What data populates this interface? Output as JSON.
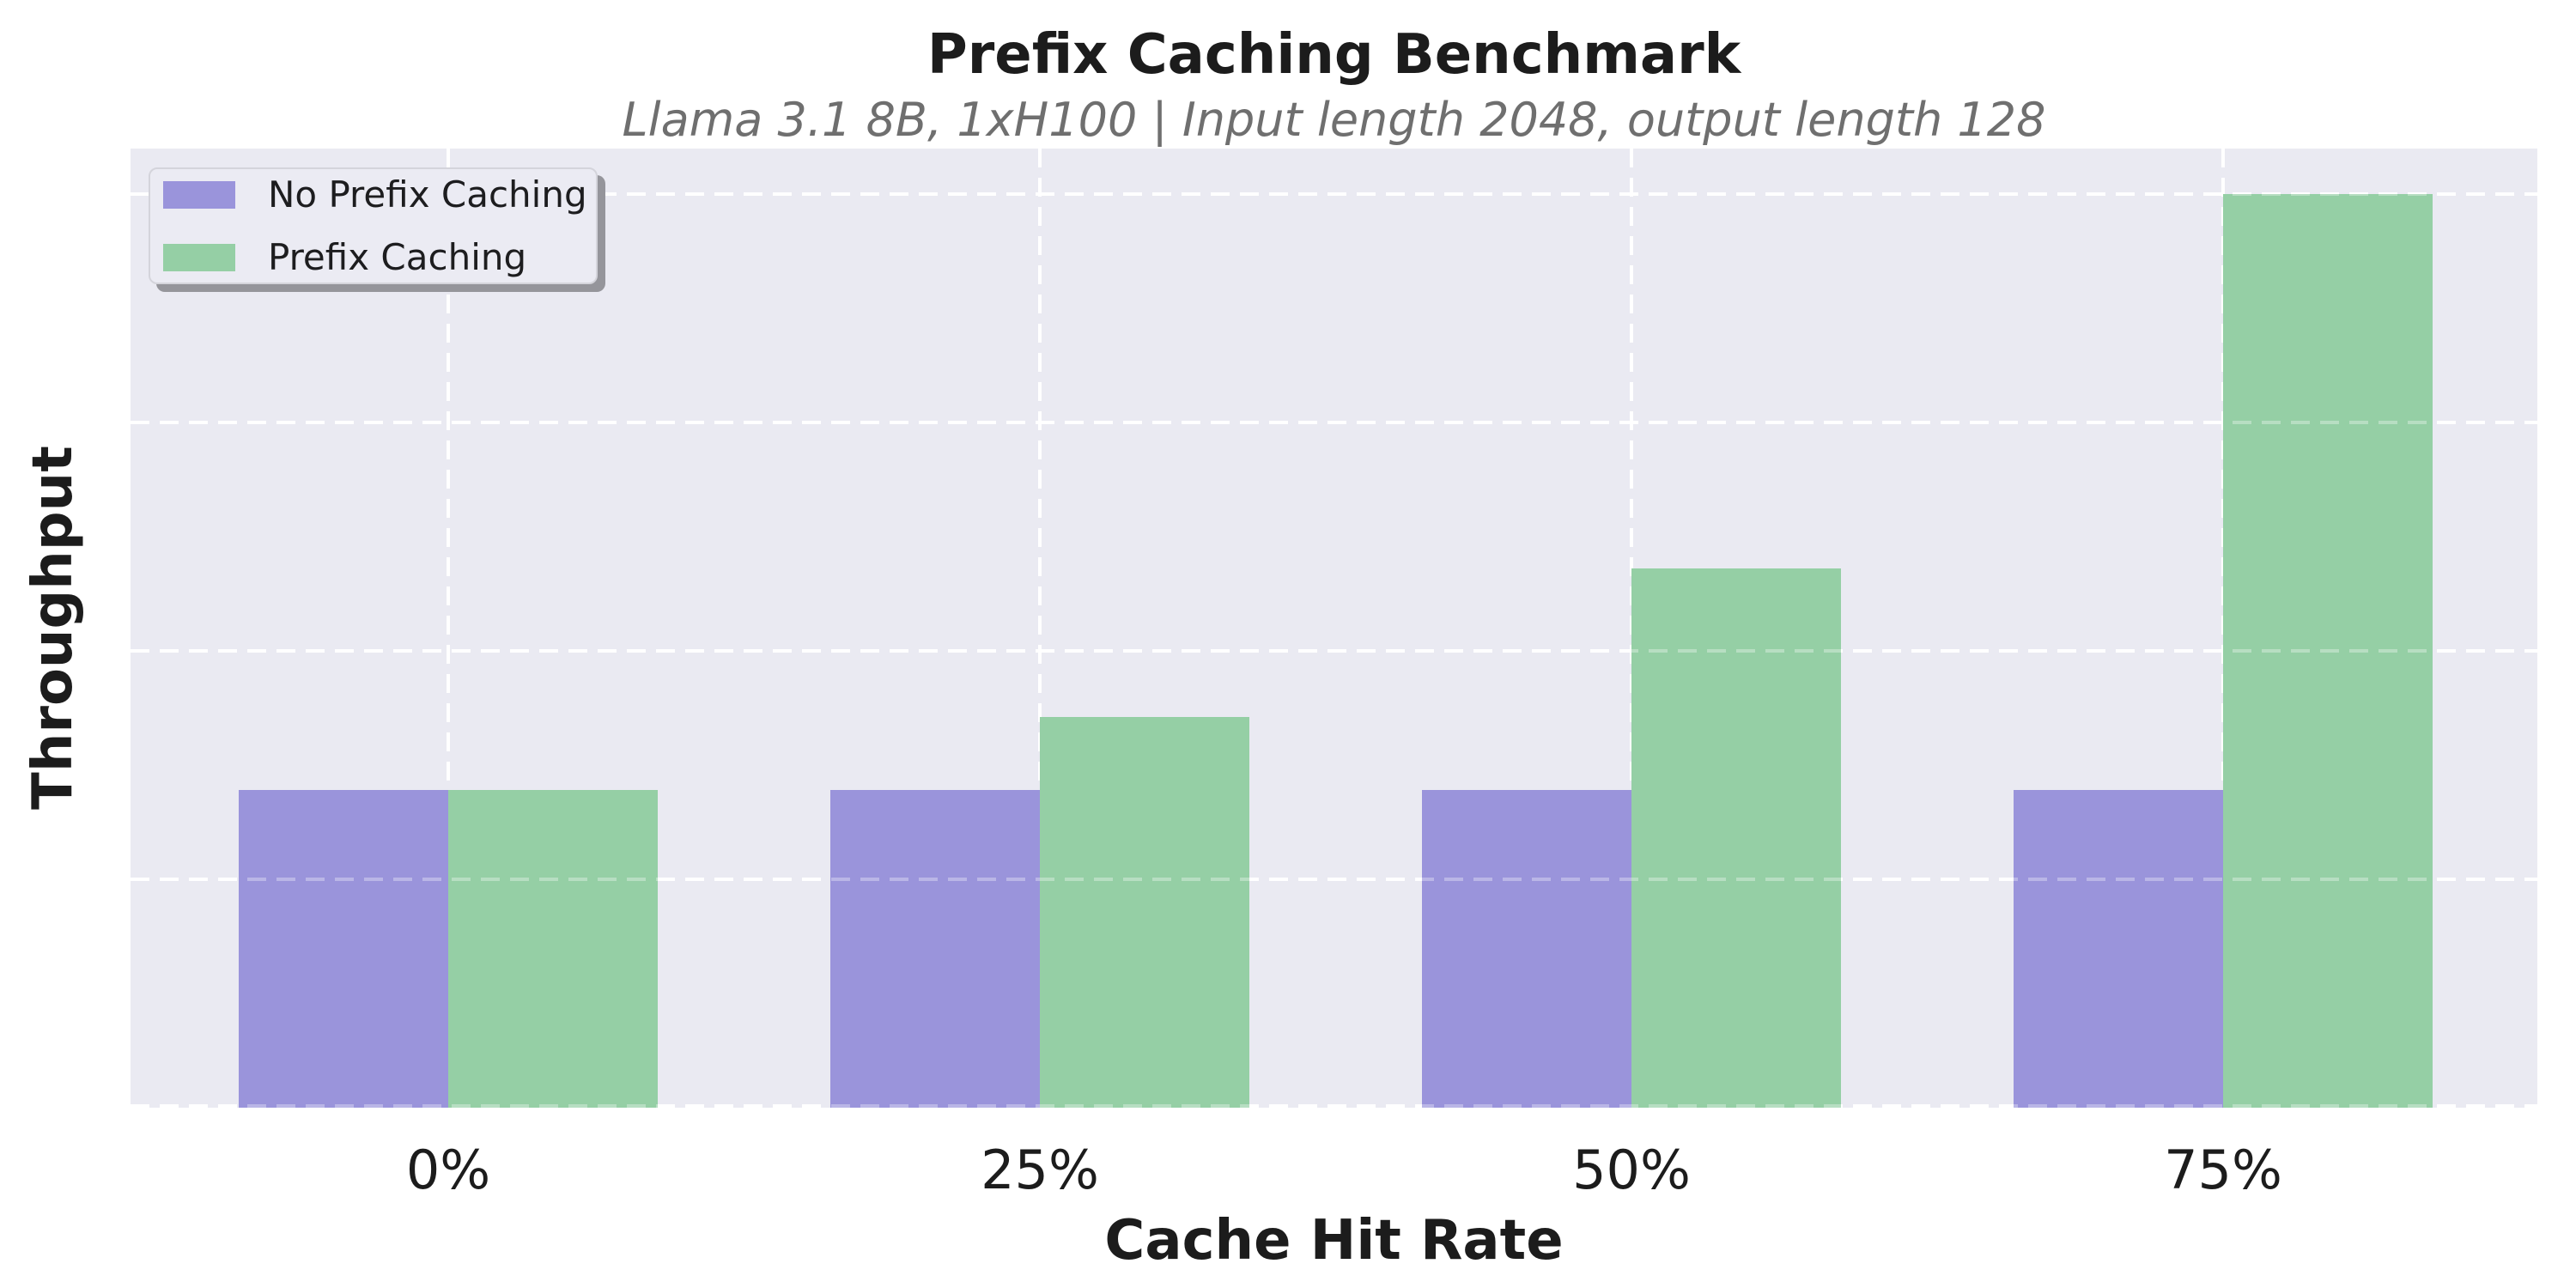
{
  "chart_data": {
    "type": "bar",
    "title": "Prefix Caching Benchmark",
    "subtitle": "Llama 3.1 8B, 1xH100 | Input length 2048, output length 128",
    "xlabel": "Cache Hit Rate",
    "ylabel": "Throughput",
    "categories": [
      "0%",
      "25%",
      "50%",
      "75%"
    ],
    "series": [
      {
        "name": "No Prefix Caching",
        "color": "#9a94db",
        "values": [
          1.39,
          1.39,
          1.39,
          1.39
        ]
      },
      {
        "name": "Prefix Caching",
        "color": "#95cfa5",
        "values": [
          1.39,
          1.71,
          2.36,
          4.0
        ]
      }
    ],
    "ylim": [
      0,
      4.2
    ],
    "ytick_values": [
      0,
      1,
      2,
      3,
      4
    ],
    "ytick_labels_visible": false,
    "legend": {
      "position": "upper-left",
      "items": [
        "No Prefix Caching",
        "Prefix Caching"
      ]
    },
    "style": {
      "plot_background": "#eaeaf2",
      "grid_color": "#ffffff",
      "grid_linestyle": "dashed",
      "title_color": "#1c1c1c",
      "subtitle_color": "#6f6f6f",
      "tick_color": "#1c1c1c",
      "legend_background": "#ebebf3",
      "legend_border": "#d4d4db",
      "legend_shadow": "#95959b"
    }
  }
}
